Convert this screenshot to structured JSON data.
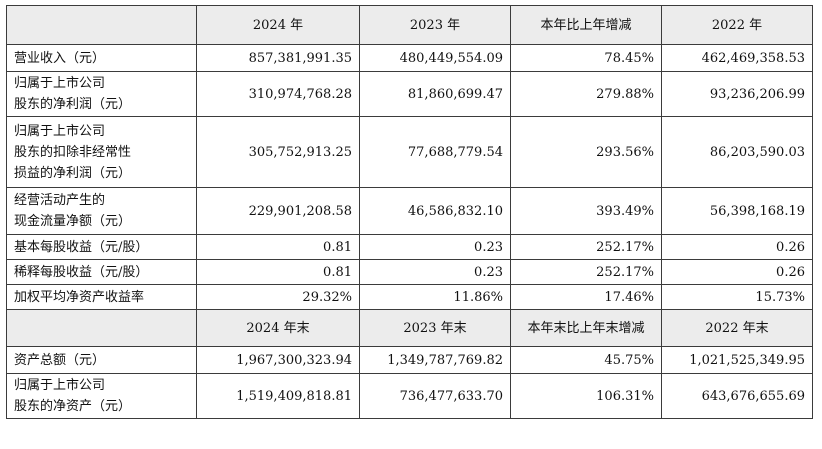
{
  "table": {
    "header1": [
      "",
      "2024 年",
      "2023 年",
      "本年比上年增减",
      "2022 年"
    ],
    "rows1": [
      {
        "label": [
          "营业收入（元）"
        ],
        "values": [
          "857,381,991.35",
          "480,449,554.09",
          "78.45%",
          "462,469,358.53"
        ]
      },
      {
        "label": [
          "归属于上市公司",
          "股东的净利润（元）"
        ],
        "values": [
          "310,974,768.28",
          "81,860,699.47",
          "279.88%",
          "93,236,206.99"
        ]
      },
      {
        "label": [
          "归属于上市公司",
          "股东的扣除非经常性",
          "损益的净利润（元）"
        ],
        "values": [
          "305,752,913.25",
          "77,688,779.54",
          "293.56%",
          "86,203,590.03"
        ]
      },
      {
        "label": [
          "经营活动产生的",
          "现金流量净额（元）"
        ],
        "values": [
          "229,901,208.58",
          "46,586,832.10",
          "393.49%",
          "56,398,168.19"
        ]
      },
      {
        "label": [
          "基本每股收益（元/股）"
        ],
        "values": [
          "0.81",
          "0.23",
          "252.17%",
          "0.26"
        ]
      },
      {
        "label": [
          "稀释每股收益（元/股）"
        ],
        "values": [
          "0.81",
          "0.23",
          "252.17%",
          "0.26"
        ]
      },
      {
        "label": [
          "加权平均净资产收益率"
        ],
        "values": [
          "29.32%",
          "11.86%",
          "17.46%",
          "15.73%"
        ]
      }
    ],
    "header2": [
      "",
      "2024 年末",
      "2023 年末",
      "本年末比上年末增减",
      "2022 年末"
    ],
    "rows2": [
      {
        "label": [
          "资产总额（元）"
        ],
        "values": [
          "1,967,300,323.94",
          "1,349,787,769.82",
          "45.75%",
          "1,021,525,349.95"
        ]
      },
      {
        "label": [
          "归属于上市公司",
          "股东的净资产（元）"
        ],
        "values": [
          "1,519,409,818.81",
          "736,477,633.70",
          "106.31%",
          "643,676,655.69"
        ]
      }
    ]
  }
}
